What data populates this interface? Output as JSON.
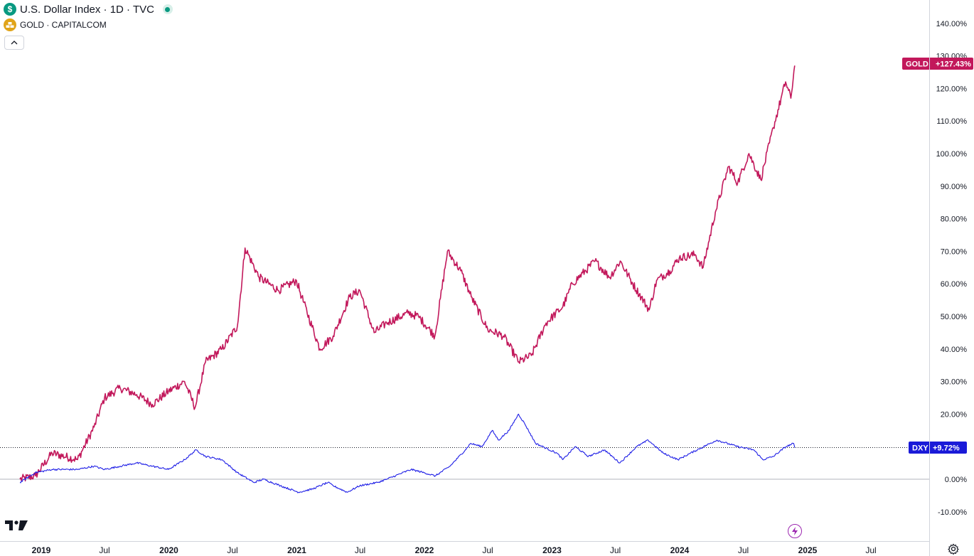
{
  "legend": {
    "main_title": "U.S. Dollar Index · 1D · TVC",
    "main_icon": "$",
    "compare_title": "GOLD · CAPITALCOM",
    "collapse_icon": "chevron-up-icon"
  },
  "badges": {
    "gold": {
      "label": "GOLD",
      "value": "+127.43%"
    },
    "dxy": {
      "label": "DXY",
      "value": "+9.72%"
    }
  },
  "colors": {
    "gold": "#c2185b",
    "dxy": "#1e1ee6",
    "gold_badge": "#c2185b",
    "dxy_badge": "#1a1ad8",
    "axis_text": "#131722"
  },
  "chart_data": {
    "type": "line",
    "y_unit": "percent",
    "ylim": [
      -12,
      145
    ],
    "y_ticks": [
      "140.00%",
      "130.00%",
      "120.00%",
      "110.00%",
      "100.00%",
      "90.00%",
      "80.00%",
      "70.00%",
      "60.00%",
      "50.00%",
      "40.00%",
      "30.00%",
      "20.00%",
      "10.00%",
      "0.00%",
      "-10.00%"
    ],
    "x_ticks": [
      "2019",
      "Jul",
      "2020",
      "Jul",
      "2021",
      "Jul",
      "2022",
      "Jul",
      "2023",
      "Jul",
      "2024",
      "Jul",
      "2025",
      "Jul"
    ],
    "series": [
      {
        "name": "GOLD",
        "x": [
          "2018-11-01",
          "2018-12-15",
          "2019-02-01",
          "2019-04-15",
          "2019-06-01",
          "2019-07-01",
          "2019-08-15",
          "2019-10-01",
          "2019-11-15",
          "2019-12-31",
          "2020-02-15",
          "2020-03-16",
          "2020-04-15",
          "2020-06-01",
          "2020-07-15",
          "2020-08-06",
          "2020-09-15",
          "2020-11-09",
          "2020-12-31",
          "2021-01-15",
          "2021-03-08",
          "2021-04-15",
          "2021-06-01",
          "2021-06-30",
          "2021-08-10",
          "2021-09-15",
          "2021-11-15",
          "2021-12-15",
          "2022-01-31",
          "2022-03-08",
          "2022-04-15",
          "2022-05-15",
          "2022-07-01",
          "2022-08-15",
          "2022-09-28",
          "2022-11-03",
          "2022-12-15",
          "2023-02-01",
          "2023-02-28",
          "2023-05-04",
          "2023-06-15",
          "2023-07-15",
          "2023-08-20",
          "2023-10-06",
          "2023-10-27",
          "2023-12-04",
          "2023-12-31",
          "2024-02-14",
          "2024-03-08",
          "2024-04-12",
          "2024-05-20",
          "2024-06-15",
          "2024-07-17",
          "2024-08-20",
          "2024-09-25",
          "2024-10-30",
          "2024-11-14",
          "2024-11-25"
        ],
        "values": [
          0,
          1,
          8,
          6,
          16,
          25,
          28,
          26,
          23,
          27,
          30,
          22,
          36,
          40,
          47,
          71,
          62,
          58,
          61,
          56,
          40,
          44,
          56,
          58,
          45,
          48,
          51,
          50,
          44,
          70,
          64,
          56,
          46,
          44,
          36,
          38,
          48,
          53,
          60,
          67,
          62,
          67,
          60,
          52,
          61,
          64,
          68,
          69,
          65,
          82,
          96,
          91,
          100,
          92,
          108,
          122,
          117,
          127
        ]
      },
      {
        "name": "DXY",
        "x": [
          "2018-11-01",
          "2018-12-15",
          "2019-02-01",
          "2019-04-15",
          "2019-06-01",
          "2019-07-01",
          "2019-08-15",
          "2019-10-01",
          "2019-11-15",
          "2019-12-31",
          "2020-02-15",
          "2020-03-19",
          "2020-04-15",
          "2020-06-01",
          "2020-07-15",
          "2020-08-31",
          "2020-09-28",
          "2020-11-15",
          "2021-01-06",
          "2021-02-15",
          "2021-03-31",
          "2021-04-15",
          "2021-05-25",
          "2021-06-30",
          "2021-08-20",
          "2021-09-15",
          "2021-11-24",
          "2021-12-31",
          "2022-02-01",
          "2022-03-15",
          "2022-04-28",
          "2022-05-13",
          "2022-06-15",
          "2022-07-14",
          "2022-08-01",
          "2022-08-31",
          "2022-09-27",
          "2022-10-15",
          "2022-11-15",
          "2023-01-15",
          "2023-02-01",
          "2023-03-08",
          "2023-04-15",
          "2023-05-31",
          "2023-07-14",
          "2023-08-31",
          "2023-10-03",
          "2023-11-15",
          "2023-12-27",
          "2024-02-01",
          "2024-04-16",
          "2024-06-15",
          "2024-07-31",
          "2024-08-26",
          "2024-09-25",
          "2024-10-31",
          "2024-11-22",
          "2024-11-25"
        ],
        "values": [
          -1,
          2,
          3,
          3,
          4,
          3,
          4,
          5,
          4,
          3,
          6,
          9,
          7,
          6,
          2,
          -1,
          0,
          -2,
          -4,
          -3,
          -1,
          -2,
          -4,
          -2,
          -1,
          0,
          3,
          2,
          1,
          4,
          9,
          11,
          10,
          15,
          12,
          15,
          20,
          17,
          11,
          8,
          6,
          10,
          7,
          9,
          5,
          10,
          12,
          8,
          6,
          8,
          12,
          10,
          9,
          6,
          7,
          10,
          11,
          9.72
        ]
      }
    ]
  }
}
